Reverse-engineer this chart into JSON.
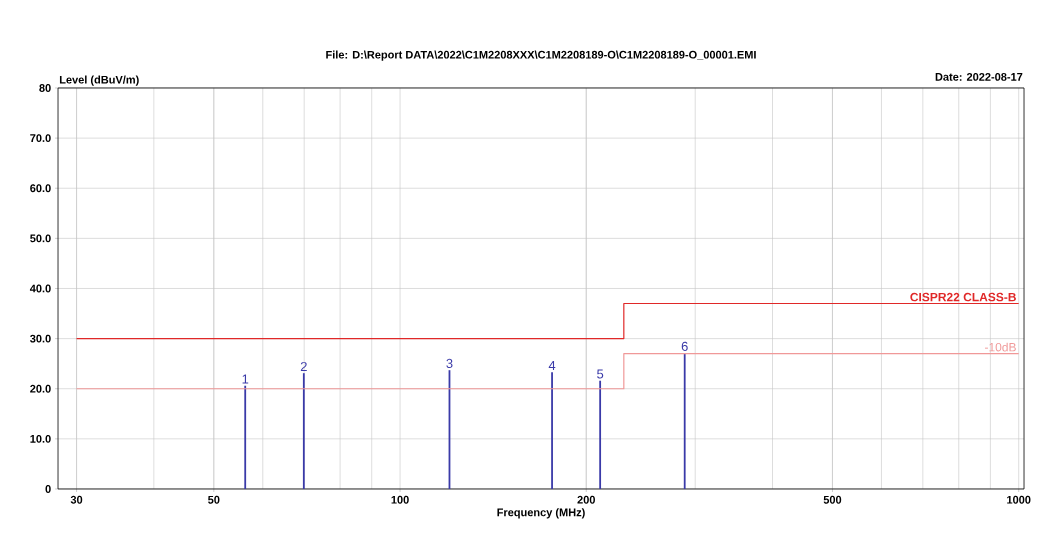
{
  "chart_data": {
    "type": "bar",
    "title": "File: D:\\Report DATA\\2022\\C1M2208XXX\\C1M2208189-O\\C1M2208189-O_00001.EMI",
    "annotations": [
      "Date: 2022-08-17",
      {
        "text": "1",
        "x": 56.2,
        "y": 20.6
      },
      {
        "text": "2",
        "x": 69.9,
        "y": 23.1
      },
      {
        "text": "3",
        "x": 120.2,
        "y": 23.7
      },
      {
        "text": "4",
        "x": 176.1,
        "y": 23.3
      },
      {
        "text": "5",
        "x": 210.6,
        "y": 21.6
      },
      {
        "text": "6",
        "x": 288.5,
        "y": 27.1
      }
    ],
    "xlabel": "Frequency (MHz)",
    "ylabel": "Level (dBuV/m)",
    "log": "x",
    "grid": true,
    "xlim": [
      28,
      1020
    ],
    "xticks": [
      30,
      50,
      100,
      200,
      500,
      1000
    ],
    "ylim": [
      0,
      80
    ],
    "yticks": [
      0,
      {
        "value": 10,
        "label": "10.0"
      },
      {
        "value": 20,
        "label": "20.0"
      },
      {
        "value": 30,
        "label": "30.0"
      },
      {
        "value": 40,
        "label": "40.0"
      },
      {
        "value": 50,
        "label": "50.0"
      },
      {
        "value": 60,
        "label": "60.0"
      },
      {
        "value": 70,
        "label": "70.0"
      },
      80
    ],
    "series": [
      {
        "color": "#3a3aa8",
        "x": [
          56.2,
          69.9,
          120.2,
          176.1,
          210.6,
          288.5
        ],
        "values": [
          20.6,
          23.1,
          23.7,
          23.3,
          21.6,
          27.1
        ]
      },
      {
        "type": "line",
        "name": "CISPR22 CLASS-B",
        "color": "#e02828",
        "x": [
          30,
          230,
          230,
          1000
        ],
        "values": [
          30,
          30,
          37,
          37
        ]
      },
      {
        "type": "line",
        "name": "-10dB",
        "color": "#f09898",
        "x": [
          30,
          230,
          230,
          1000
        ],
        "values": [
          20,
          20,
          27,
          27
        ]
      }
    ]
  }
}
